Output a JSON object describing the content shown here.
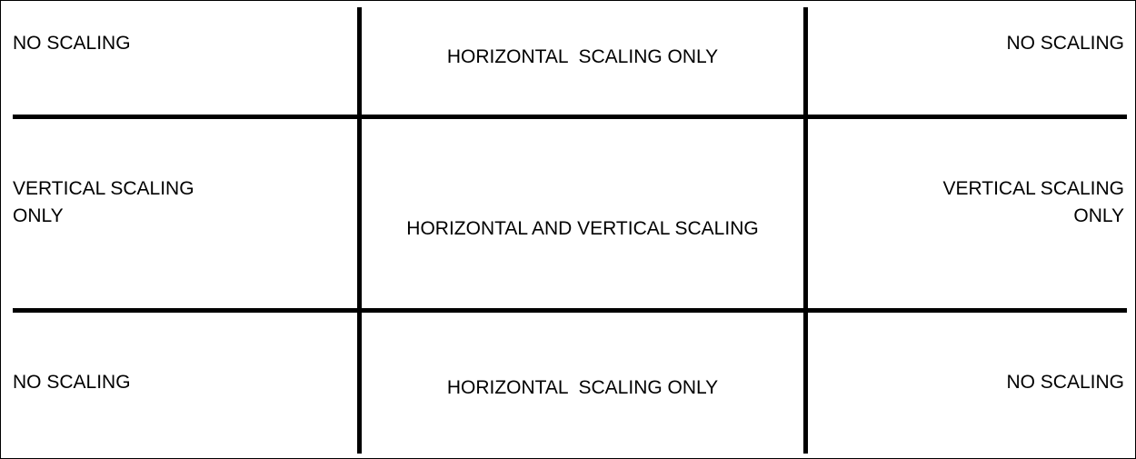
{
  "regions": {
    "top_left": "NO SCALING",
    "top_center": "HORIZONTAL  SCALING ONLY",
    "top_right": "NO SCALING",
    "middle_left": "VERTICAL SCALING\nONLY",
    "middle_center": "HORIZONTAL AND VERTICAL SCALING",
    "middle_right": "VERTICAL SCALING\nONLY",
    "bottom_left": "NO SCALING",
    "bottom_center": "HORIZONTAL  SCALING ONLY",
    "bottom_right": "NO SCALING"
  },
  "colors": {
    "line": "#000000",
    "text": "#000000",
    "background": "#ffffff"
  }
}
